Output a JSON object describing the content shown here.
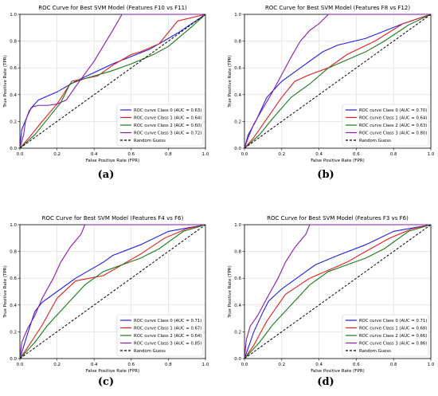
{
  "palette": {
    "class0": "#1f1fe6",
    "class1": "#e01f1f",
    "class2": "#1a7a1a",
    "class3": "#8a1aa8",
    "random": "#000000"
  },
  "chart_data": [
    {
      "type": "line",
      "title": "ROC Curve for Best SVM Model (Features F10 vs F11)",
      "xlabel": "False Positive Rate (FPR)",
      "ylabel": "True Positive Rate (TPR)",
      "xlim": [
        0,
        1
      ],
      "ylim": [
        0,
        1
      ],
      "xticks": [
        "0.0",
        "0.2",
        "0.4",
        "0.6",
        "0.8",
        "1.0"
      ],
      "yticks": [
        "0.0",
        "0.2",
        "0.4",
        "0.6",
        "0.8",
        "1.0"
      ],
      "legend_position": "lower-right",
      "panel_label": "(a)",
      "series": [
        {
          "name": "ROC curve Class 0 (AUC = 0.63)",
          "color": "#1f1fe6",
          "dashed": false,
          "points": [
            [
              0,
              0
            ],
            [
              0.01,
              0.14
            ],
            [
              0.04,
              0.24
            ],
            [
              0.06,
              0.3
            ],
            [
              0.1,
              0.36
            ],
            [
              0.2,
              0.42
            ],
            [
              0.3,
              0.5
            ],
            [
              0.5,
              0.63
            ],
            [
              0.7,
              0.74
            ],
            [
              0.85,
              0.86
            ],
            [
              1,
              1
            ]
          ]
        },
        {
          "name": "ROC curve Class 1 (AUC = 0.64)",
          "color": "#e01f1f",
          "dashed": false,
          "points": [
            [
              0,
              0
            ],
            [
              0.05,
              0.08
            ],
            [
              0.12,
              0.2
            ],
            [
              0.2,
              0.33
            ],
            [
              0.28,
              0.5
            ],
            [
              0.42,
              0.54
            ],
            [
              0.5,
              0.62
            ],
            [
              0.6,
              0.7
            ],
            [
              0.65,
              0.72
            ],
            [
              0.75,
              0.78
            ],
            [
              0.85,
              0.95
            ],
            [
              1,
              1
            ]
          ]
        },
        {
          "name": "ROC curve Class 2 (AUC = 0.60)",
          "color": "#1a7a1a",
          "dashed": false,
          "points": [
            [
              0,
              0
            ],
            [
              0.08,
              0.1
            ],
            [
              0.15,
              0.22
            ],
            [
              0.22,
              0.34
            ],
            [
              0.27,
              0.48
            ],
            [
              0.35,
              0.52
            ],
            [
              0.5,
              0.58
            ],
            [
              0.6,
              0.63
            ],
            [
              0.72,
              0.7
            ],
            [
              0.8,
              0.76
            ],
            [
              0.92,
              0.9
            ],
            [
              1,
              1
            ]
          ]
        },
        {
          "name": "ROC curve Class 3 (AUC = 0.72)",
          "color": "#8a1aa8",
          "dashed": false,
          "points": [
            [
              0,
              0
            ],
            [
              0.02,
              0.1
            ],
            [
              0.03,
              0.2
            ],
            [
              0.05,
              0.28
            ],
            [
              0.07,
              0.31
            ],
            [
              0.1,
              0.32
            ],
            [
              0.15,
              0.32
            ],
            [
              0.2,
              0.33
            ],
            [
              0.25,
              0.36
            ],
            [
              0.3,
              0.46
            ],
            [
              0.4,
              0.65
            ],
            [
              0.5,
              0.88
            ],
            [
              0.55,
              1
            ],
            [
              1,
              1
            ]
          ]
        },
        {
          "name": "Random Guess",
          "color": "#000000",
          "dashed": true,
          "points": [
            [
              0,
              0
            ],
            [
              1,
              1
            ]
          ]
        }
      ]
    },
    {
      "type": "line",
      "title": "ROC Curve for Best SVM Model (Features F8 vs F12)",
      "xlabel": "False Positive Rate (FPR)",
      "ylabel": "True Positive Rate (TPR)",
      "xlim": [
        0,
        1
      ],
      "ylim": [
        0,
        1
      ],
      "xticks": [
        "0.0",
        "0.2",
        "0.4",
        "0.6",
        "0.8",
        "1.0"
      ],
      "yticks": [
        "0.0",
        "0.2",
        "0.4",
        "0.6",
        "0.8",
        "1.0"
      ],
      "legend_position": "lower-right",
      "panel_label": "(b)",
      "series": [
        {
          "name": "ROC curve Class 0 (AUC = 0.70)",
          "color": "#1f1fe6",
          "dashed": false,
          "points": [
            [
              0,
              0
            ],
            [
              0.02,
              0.1
            ],
            [
              0.06,
              0.2
            ],
            [
              0.12,
              0.38
            ],
            [
              0.2,
              0.5
            ],
            [
              0.3,
              0.6
            ],
            [
              0.42,
              0.72
            ],
            [
              0.5,
              0.77
            ],
            [
              0.65,
              0.82
            ],
            [
              0.85,
              0.93
            ],
            [
              1,
              1
            ]
          ]
        },
        {
          "name": "ROC curve Class 1 (AUC = 0.64)",
          "color": "#e01f1f",
          "dashed": false,
          "points": [
            [
              0,
              0
            ],
            [
              0.05,
              0.08
            ],
            [
              0.12,
              0.22
            ],
            [
              0.2,
              0.38
            ],
            [
              0.27,
              0.5
            ],
            [
              0.35,
              0.55
            ],
            [
              0.45,
              0.6
            ],
            [
              0.55,
              0.7
            ],
            [
              0.7,
              0.8
            ],
            [
              0.85,
              0.93
            ],
            [
              1,
              1
            ]
          ]
        },
        {
          "name": "ROC curve Class 2 (AUC = 0.63)",
          "color": "#1a7a1a",
          "dashed": false,
          "points": [
            [
              0,
              0
            ],
            [
              0.08,
              0.1
            ],
            [
              0.15,
              0.22
            ],
            [
              0.25,
              0.38
            ],
            [
              0.35,
              0.48
            ],
            [
              0.45,
              0.6
            ],
            [
              0.55,
              0.66
            ],
            [
              0.65,
              0.72
            ],
            [
              0.75,
              0.8
            ],
            [
              0.88,
              0.92
            ],
            [
              1,
              1
            ]
          ]
        },
        {
          "name": "ROC curve Class 3 (AUC = 0.80)",
          "color": "#8a1aa8",
          "dashed": false,
          "points": [
            [
              0,
              0
            ],
            [
              0.02,
              0.08
            ],
            [
              0.05,
              0.18
            ],
            [
              0.1,
              0.3
            ],
            [
              0.15,
              0.42
            ],
            [
              0.2,
              0.55
            ],
            [
              0.25,
              0.68
            ],
            [
              0.3,
              0.8
            ],
            [
              0.35,
              0.88
            ],
            [
              0.4,
              0.93
            ],
            [
              0.45,
              1
            ],
            [
              1,
              1
            ]
          ]
        },
        {
          "name": "Random Guess",
          "color": "#000000",
          "dashed": true,
          "points": [
            [
              0,
              0
            ],
            [
              1,
              1
            ]
          ]
        }
      ]
    },
    {
      "type": "line",
      "title": "ROC Curve for Best SVM Model (Features F4 vs F6)",
      "xlabel": "False Positive Rate (FPR)",
      "ylabel": "True Positive Rate (TPR)",
      "xlim": [
        0,
        1
      ],
      "ylim": [
        0,
        1
      ],
      "xticks": [
        "0.0",
        "0.2",
        "0.4",
        "0.6",
        "0.8",
        "1.0"
      ],
      "yticks": [
        "0.0",
        "0.2",
        "0.4",
        "0.6",
        "0.8",
        "1.0"
      ],
      "legend_position": "lower-right",
      "panel_label": "(c)",
      "series": [
        {
          "name": "ROC curve Class 0 (AUC = 0.71)",
          "color": "#1f1fe6",
          "dashed": false,
          "points": [
            [
              0,
              0
            ],
            [
              0.04,
              0.18
            ],
            [
              0.08,
              0.35
            ],
            [
              0.12,
              0.42
            ],
            [
              0.2,
              0.5
            ],
            [
              0.3,
              0.6
            ],
            [
              0.45,
              0.72
            ],
            [
              0.5,
              0.77
            ],
            [
              0.65,
              0.85
            ],
            [
              0.8,
              0.95
            ],
            [
              1,
              1
            ]
          ]
        },
        {
          "name": "ROC curve Class 1 (AUC = 0.67)",
          "color": "#e01f1f",
          "dashed": false,
          "points": [
            [
              0,
              0
            ],
            [
              0.05,
              0.1
            ],
            [
              0.12,
              0.25
            ],
            [
              0.2,
              0.45
            ],
            [
              0.3,
              0.58
            ],
            [
              0.45,
              0.62
            ],
            [
              0.55,
              0.7
            ],
            [
              0.65,
              0.78
            ],
            [
              0.78,
              0.9
            ],
            [
              0.9,
              0.97
            ],
            [
              1,
              1
            ]
          ]
        },
        {
          "name": "ROC curve Class 2 (AUC = 0.64)",
          "color": "#1a7a1a",
          "dashed": false,
          "points": [
            [
              0,
              0
            ],
            [
              0.08,
              0.12
            ],
            [
              0.15,
              0.25
            ],
            [
              0.25,
              0.4
            ],
            [
              0.35,
              0.55
            ],
            [
              0.45,
              0.65
            ],
            [
              0.55,
              0.7
            ],
            [
              0.65,
              0.75
            ],
            [
              0.75,
              0.82
            ],
            [
              0.88,
              0.95
            ],
            [
              1,
              1
            ]
          ]
        },
        {
          "name": "ROC curve Class 3 (AUC = 0.85)",
          "color": "#8a1aa8",
          "dashed": false,
          "points": [
            [
              0,
              0
            ],
            [
              0.01,
              0.12
            ],
            [
              0.04,
              0.22
            ],
            [
              0.08,
              0.32
            ],
            [
              0.12,
              0.45
            ],
            [
              0.18,
              0.6
            ],
            [
              0.22,
              0.72
            ],
            [
              0.27,
              0.83
            ],
            [
              0.3,
              0.88
            ],
            [
              0.33,
              0.93
            ],
            [
              0.35,
              1
            ],
            [
              1,
              1
            ]
          ]
        },
        {
          "name": "Random Guess",
          "color": "#000000",
          "dashed": true,
          "points": [
            [
              0,
              0
            ],
            [
              1,
              1
            ]
          ]
        }
      ]
    },
    {
      "type": "line",
      "title": "ROC Curve for Best SVM Model (Features F3 vs F6)",
      "xlabel": "False Positive Rate (FPR)",
      "ylabel": "True Positive Rate (TPR)",
      "xlim": [
        0,
        1
      ],
      "ylim": [
        0,
        1
      ],
      "xticks": [
        "0.0",
        "0.2",
        "0.4",
        "0.6",
        "0.8",
        "1.0"
      ],
      "yticks": [
        "0.0",
        "0.2",
        "0.4",
        "0.6",
        "0.8",
        "1.0"
      ],
      "legend_position": "lower-right",
      "panel_label": "(d)",
      "series": [
        {
          "name": "ROC curve Class 0 (AUC = 0.71)",
          "color": "#1f1fe6",
          "dashed": false,
          "points": [
            [
              0,
              0
            ],
            [
              0.05,
              0.2
            ],
            [
              0.1,
              0.35
            ],
            [
              0.13,
              0.43
            ],
            [
              0.2,
              0.52
            ],
            [
              0.3,
              0.62
            ],
            [
              0.38,
              0.7
            ],
            [
              0.5,
              0.77
            ],
            [
              0.65,
              0.85
            ],
            [
              0.8,
              0.95
            ],
            [
              1,
              1
            ]
          ]
        },
        {
          "name": "ROC curve Class 1 (AUC = 0.68)",
          "color": "#e01f1f",
          "dashed": false,
          "points": [
            [
              0,
              0
            ],
            [
              0.05,
              0.1
            ],
            [
              0.12,
              0.28
            ],
            [
              0.22,
              0.48
            ],
            [
              0.35,
              0.6
            ],
            [
              0.45,
              0.66
            ],
            [
              0.55,
              0.72
            ],
            [
              0.65,
              0.8
            ],
            [
              0.78,
              0.9
            ],
            [
              0.9,
              0.97
            ],
            [
              1,
              1
            ]
          ]
        },
        {
          "name": "ROC curve Class 2 (AUC = 0.66)",
          "color": "#1a7a1a",
          "dashed": false,
          "points": [
            [
              0,
              0
            ],
            [
              0.08,
              0.12
            ],
            [
              0.15,
              0.25
            ],
            [
              0.25,
              0.4
            ],
            [
              0.35,
              0.55
            ],
            [
              0.45,
              0.65
            ],
            [
              0.55,
              0.7
            ],
            [
              0.65,
              0.75
            ],
            [
              0.75,
              0.82
            ],
            [
              0.88,
              0.95
            ],
            [
              1,
              1
            ]
          ]
        },
        {
          "name": "ROC curve Class 3 (AUC = 0.86)",
          "color": "#8a1aa8",
          "dashed": false,
          "points": [
            [
              0,
              0
            ],
            [
              0.01,
              0.14
            ],
            [
              0.03,
              0.24
            ],
            [
              0.07,
              0.32
            ],
            [
              0.12,
              0.45
            ],
            [
              0.18,
              0.6
            ],
            [
              0.22,
              0.72
            ],
            [
              0.27,
              0.83
            ],
            [
              0.3,
              0.88
            ],
            [
              0.33,
              0.93
            ],
            [
              0.35,
              1
            ],
            [
              1,
              1
            ]
          ]
        },
        {
          "name": "Random Guess",
          "color": "#000000",
          "dashed": true,
          "points": [
            [
              0,
              0
            ],
            [
              1,
              1
            ]
          ]
        }
      ]
    }
  ]
}
